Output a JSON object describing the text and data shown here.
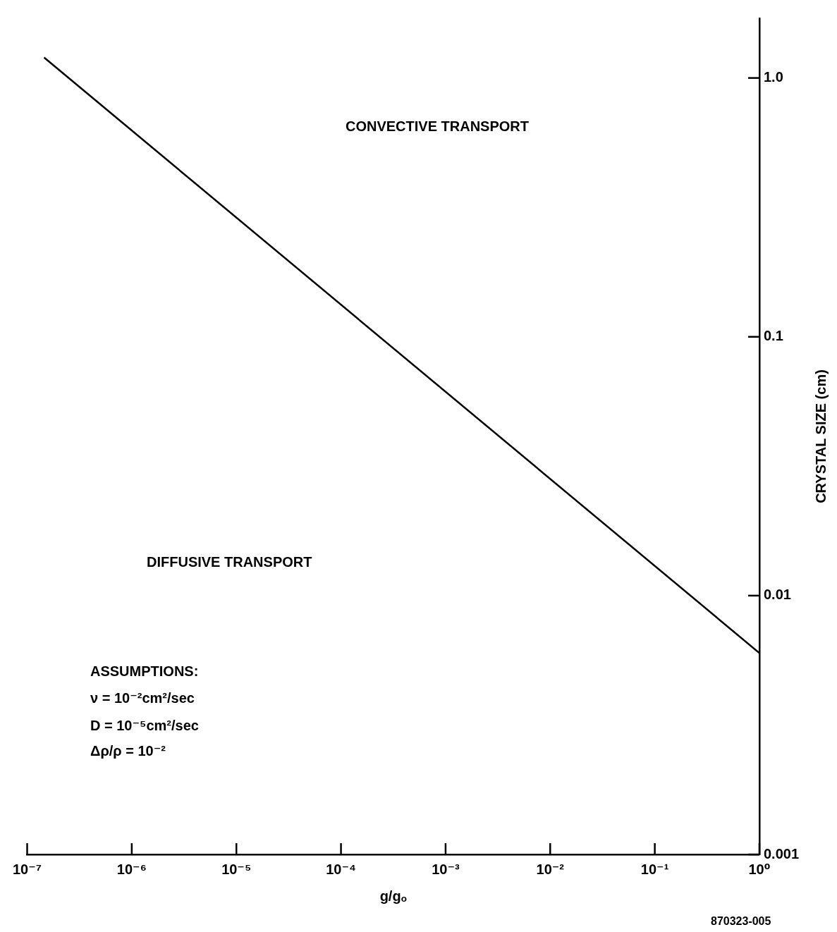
{
  "chart_data": {
    "type": "line",
    "xlabel": "g/gₒ",
    "ylabel": "CRYSTAL SIZE (cm)",
    "log": "xy",
    "xlim": [
      1e-07,
      1
    ],
    "ylim": [
      0.001,
      1.7
    ],
    "xticks": [
      {
        "value": 1e-07,
        "label": "10⁻⁷"
      },
      {
        "value": 1e-06,
        "label": "10⁻⁶"
      },
      {
        "value": 1e-05,
        "label": "10⁻⁵"
      },
      {
        "value": 0.0001,
        "label": "10⁻⁴"
      },
      {
        "value": 0.001,
        "label": "10⁻³"
      },
      {
        "value": 0.01,
        "label": "10⁻²"
      },
      {
        "value": 0.1,
        "label": "10⁻¹"
      },
      {
        "value": 1,
        "label": "10⁰"
      }
    ],
    "yticks": [
      0.001,
      0.01,
      0.1,
      {
        "value": 1,
        "label": "1.0"
      }
    ],
    "series": [
      {
        "color": "#000000",
        "x": [
          1.45e-07,
          1
        ],
        "values": [
          1.2,
          0.006
        ]
      }
    ],
    "marker": "none",
    "annotations": [
      "CONVECTIVE TRANSPORT",
      "DIFFUSIVE TRANSPORT",
      "ASSUMPTIONS:",
      "ν = 10⁻²cm²/sec",
      "D = 10⁻⁵cm²/sec",
      "Δρ/ρ = 10⁻²",
      "870323-005"
    ]
  }
}
